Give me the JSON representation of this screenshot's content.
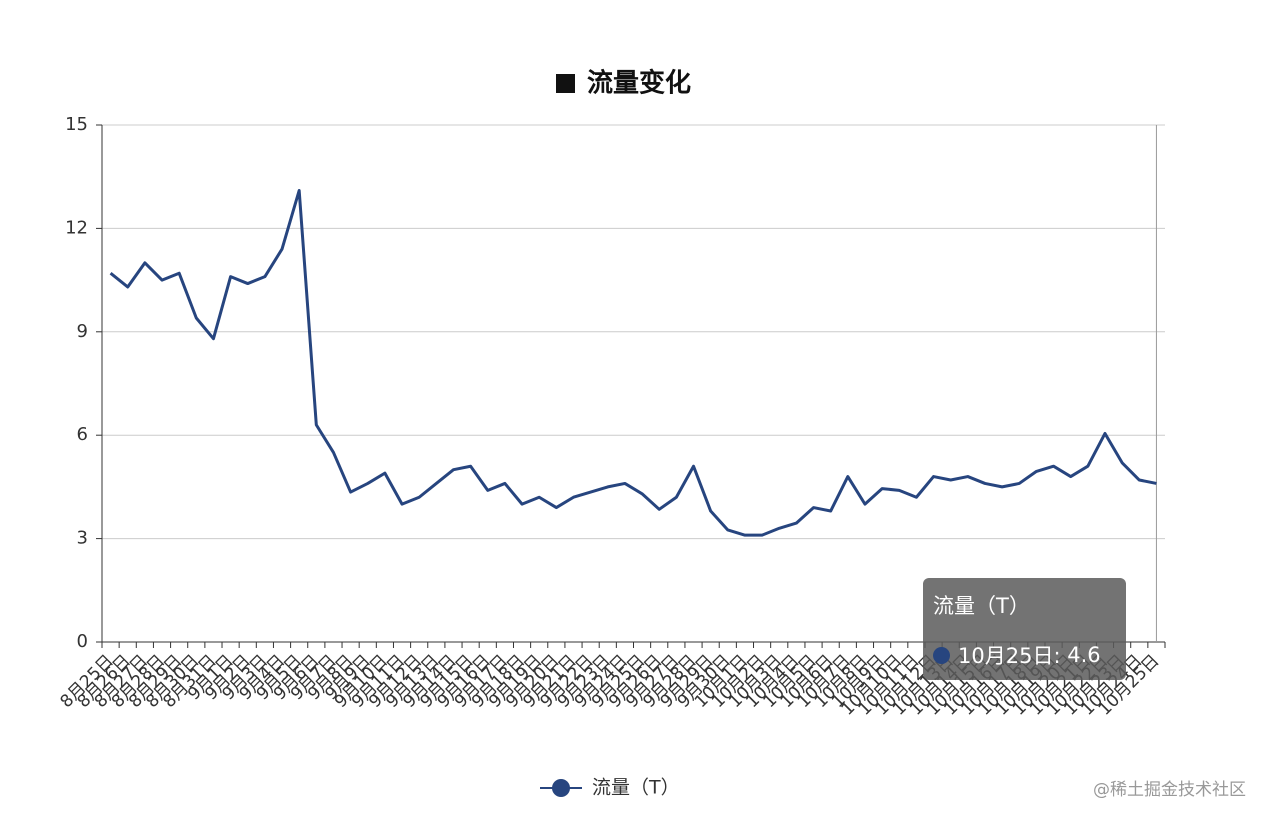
{
  "chart_data": {
    "type": "line",
    "title": "流量变化",
    "categories": [
      "8月25日",
      "8月26日",
      "8月27日",
      "8月28日",
      "8月29日",
      "8月30日",
      "8月31日",
      "9月1日",
      "9月2日",
      "9月3日",
      "9月4日",
      "9月5日",
      "9月6日",
      "9月7日",
      "9月8日",
      "9月9日",
      "9月10日",
      "9月11日",
      "9月12日",
      "9月13日",
      "9月14日",
      "9月15日",
      "9月16日",
      "9月17日",
      "9月18日",
      "9月19日",
      "9月20日",
      "9月21日",
      "9月22日",
      "9月23日",
      "9月24日",
      "9月25日",
      "9月26日",
      "9月27日",
      "9月28日",
      "9月29日",
      "9月30日",
      "10月1日",
      "10月2日",
      "10月3日",
      "10月4日",
      "10月5日",
      "10月6日",
      "10月7日",
      "10月8日",
      "10月9日",
      "10月10日",
      "10月11日",
      "10月12日",
      "10月13日",
      "10月14日",
      "10月15日",
      "10月16日",
      "10月17日",
      "10月18日",
      "10月19日",
      "10月20日",
      "10月21日",
      "10月22日",
      "10月23日",
      "10月24日",
      "10月25日"
    ],
    "series": [
      {
        "name": "流量（T）",
        "color": "#27457f",
        "values": [
          10.7,
          10.3,
          11.0,
          10.5,
          10.7,
          9.4,
          8.8,
          10.6,
          10.4,
          10.6,
          11.4,
          13.1,
          6.3,
          5.5,
          4.35,
          4.6,
          4.9,
          4.0,
          4.2,
          4.6,
          5.0,
          5.1,
          4.4,
          4.6,
          4.0,
          4.2,
          3.9,
          4.2,
          4.35,
          4.5,
          4.6,
          4.3,
          3.85,
          4.2,
          5.1,
          3.8,
          3.25,
          3.1,
          3.1,
          3.3,
          3.45,
          3.9,
          3.8,
          4.8,
          4.0,
          4.45,
          4.4,
          4.2,
          4.8,
          4.7,
          4.8,
          4.6,
          4.5,
          4.6,
          4.95,
          5.1,
          4.8,
          5.1,
          6.05,
          5.2,
          4.7,
          4.6
        ]
      }
    ],
    "ylim": [
      0,
      15
    ],
    "yticks": [
      0,
      3,
      6,
      9,
      12,
      15
    ],
    "grid": true,
    "watermark": "@稀土掘金技术社区"
  }
}
